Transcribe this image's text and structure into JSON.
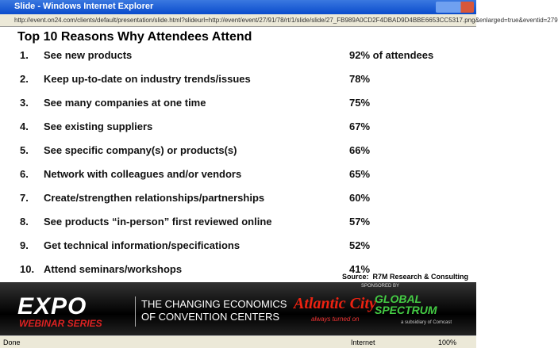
{
  "window": {
    "title": "Slide - Windows Internet Explorer",
    "url": "http://event.on24.com/clients/default/presentation/slide.html?slideurl=http://event/event/27/91/78/rt/1/slide/slide/27_FB989A0CD2F4DBAD9D4BBE6653CC5317.png&enlarged=true&eventid=279"
  },
  "slide": {
    "title": "Top 10 Reasons Why Attendees Attend",
    "items": [
      {
        "number": "1.",
        "reason": "See new products",
        "share": "92% of attendees"
      },
      {
        "number": "2.",
        "reason": "Keep up-to-date on industry trends/issues",
        "share": "78%"
      },
      {
        "number": "3.",
        "reason": "See many companies at one time",
        "share": "75%"
      },
      {
        "number": "4.",
        "reason": "See existing suppliers",
        "share": "67%"
      },
      {
        "number": "5.",
        "reason": "See specific company(s) or products(s)",
        "share": "66%"
      },
      {
        "number": "6.",
        "reason": "Network with colleagues and/or vendors",
        "share": "65%"
      },
      {
        "number": "7.",
        "reason": "Create/strengthen relationships/partnerships",
        "share": "60%"
      },
      {
        "number": "8.",
        "reason": "See products “in-person” first reviewed online",
        "share": "57%"
      },
      {
        "number": "9.",
        "reason": "Get technical information/specifications",
        "share": "52%"
      },
      {
        "number": "10.",
        "reason": "Attend seminars/workshops",
        "share": "41%"
      }
    ],
    "source": "Source:  R7M Research & Consulting"
  },
  "banner": {
    "logo": "EXPO",
    "series": "WEBINAR SERIES",
    "headline": [
      "THE CHANGING ECONOMICS",
      "OF CONVENTION CENTERS"
    ],
    "sponsored": "SPONSORED BY",
    "sponsor1": "Atlantic City",
    "sponsor1_tagline": "always turned on",
    "sponsor2": "GLOBAL SPECTRUM",
    "sponsor2_tagline": "a subsidiary of Comcast"
  },
  "status": {
    "left": "Done",
    "zone": "Internet",
    "zoom": "100%"
  }
}
